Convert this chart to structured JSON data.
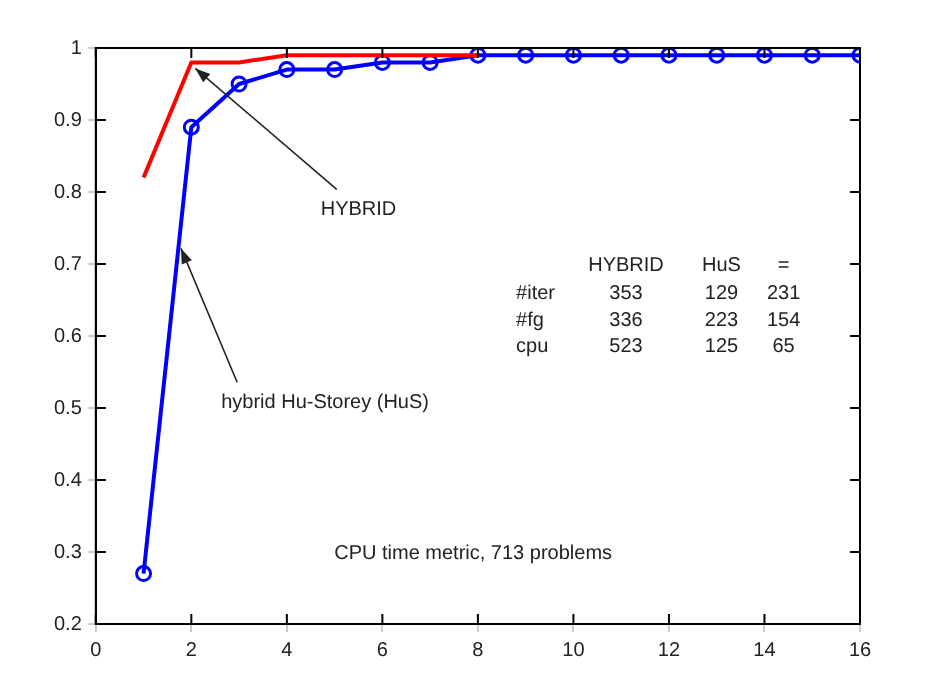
{
  "chart_data": {
    "type": "line",
    "x": [
      1,
      2,
      3,
      4,
      5,
      6,
      7,
      8,
      9,
      10,
      11,
      12,
      13,
      14,
      15,
      16
    ],
    "series": [
      {
        "color": "#ff0000",
        "marker": "none",
        "x": [
          1,
          2,
          3,
          4,
          5,
          6,
          7,
          8
        ],
        "values": [
          0.82,
          0.98,
          0.98,
          0.99,
          0.99,
          0.99,
          0.99,
          0.99
        ]
      },
      {
        "color": "#0000ff",
        "marker": "circle",
        "values": [
          0.27,
          0.89,
          0.95,
          0.97,
          0.97,
          0.98,
          0.98,
          0.99,
          0.99,
          0.99,
          0.99,
          0.99,
          0.99,
          0.99,
          0.99,
          0.99
        ]
      }
    ],
    "xlim": [
      0,
      16
    ],
    "xticks": [
      0,
      2,
      4,
      6,
      8,
      10,
      12,
      14,
      16
    ],
    "ylim": [
      0.2,
      1
    ],
    "yticks": [
      0.2,
      0.3,
      0.4,
      0.5,
      0.6,
      0.7,
      0.8,
      0.9,
      1
    ],
    "grid": false,
    "legend": false,
    "annotations": [
      {
        "text": "HYBRID",
        "x": 2,
        "y": 0.98
      },
      {
        "text": "hybrid Hu-Storey (HuS)",
        "x": 1.7,
        "y": 0.73
      },
      "HYBRID HuS =",
      "#iter 353 129 231",
      "#fg 336 223 154",
      "cpu 523 125 65",
      "CPU time metric, 713 problems"
    ]
  }
}
